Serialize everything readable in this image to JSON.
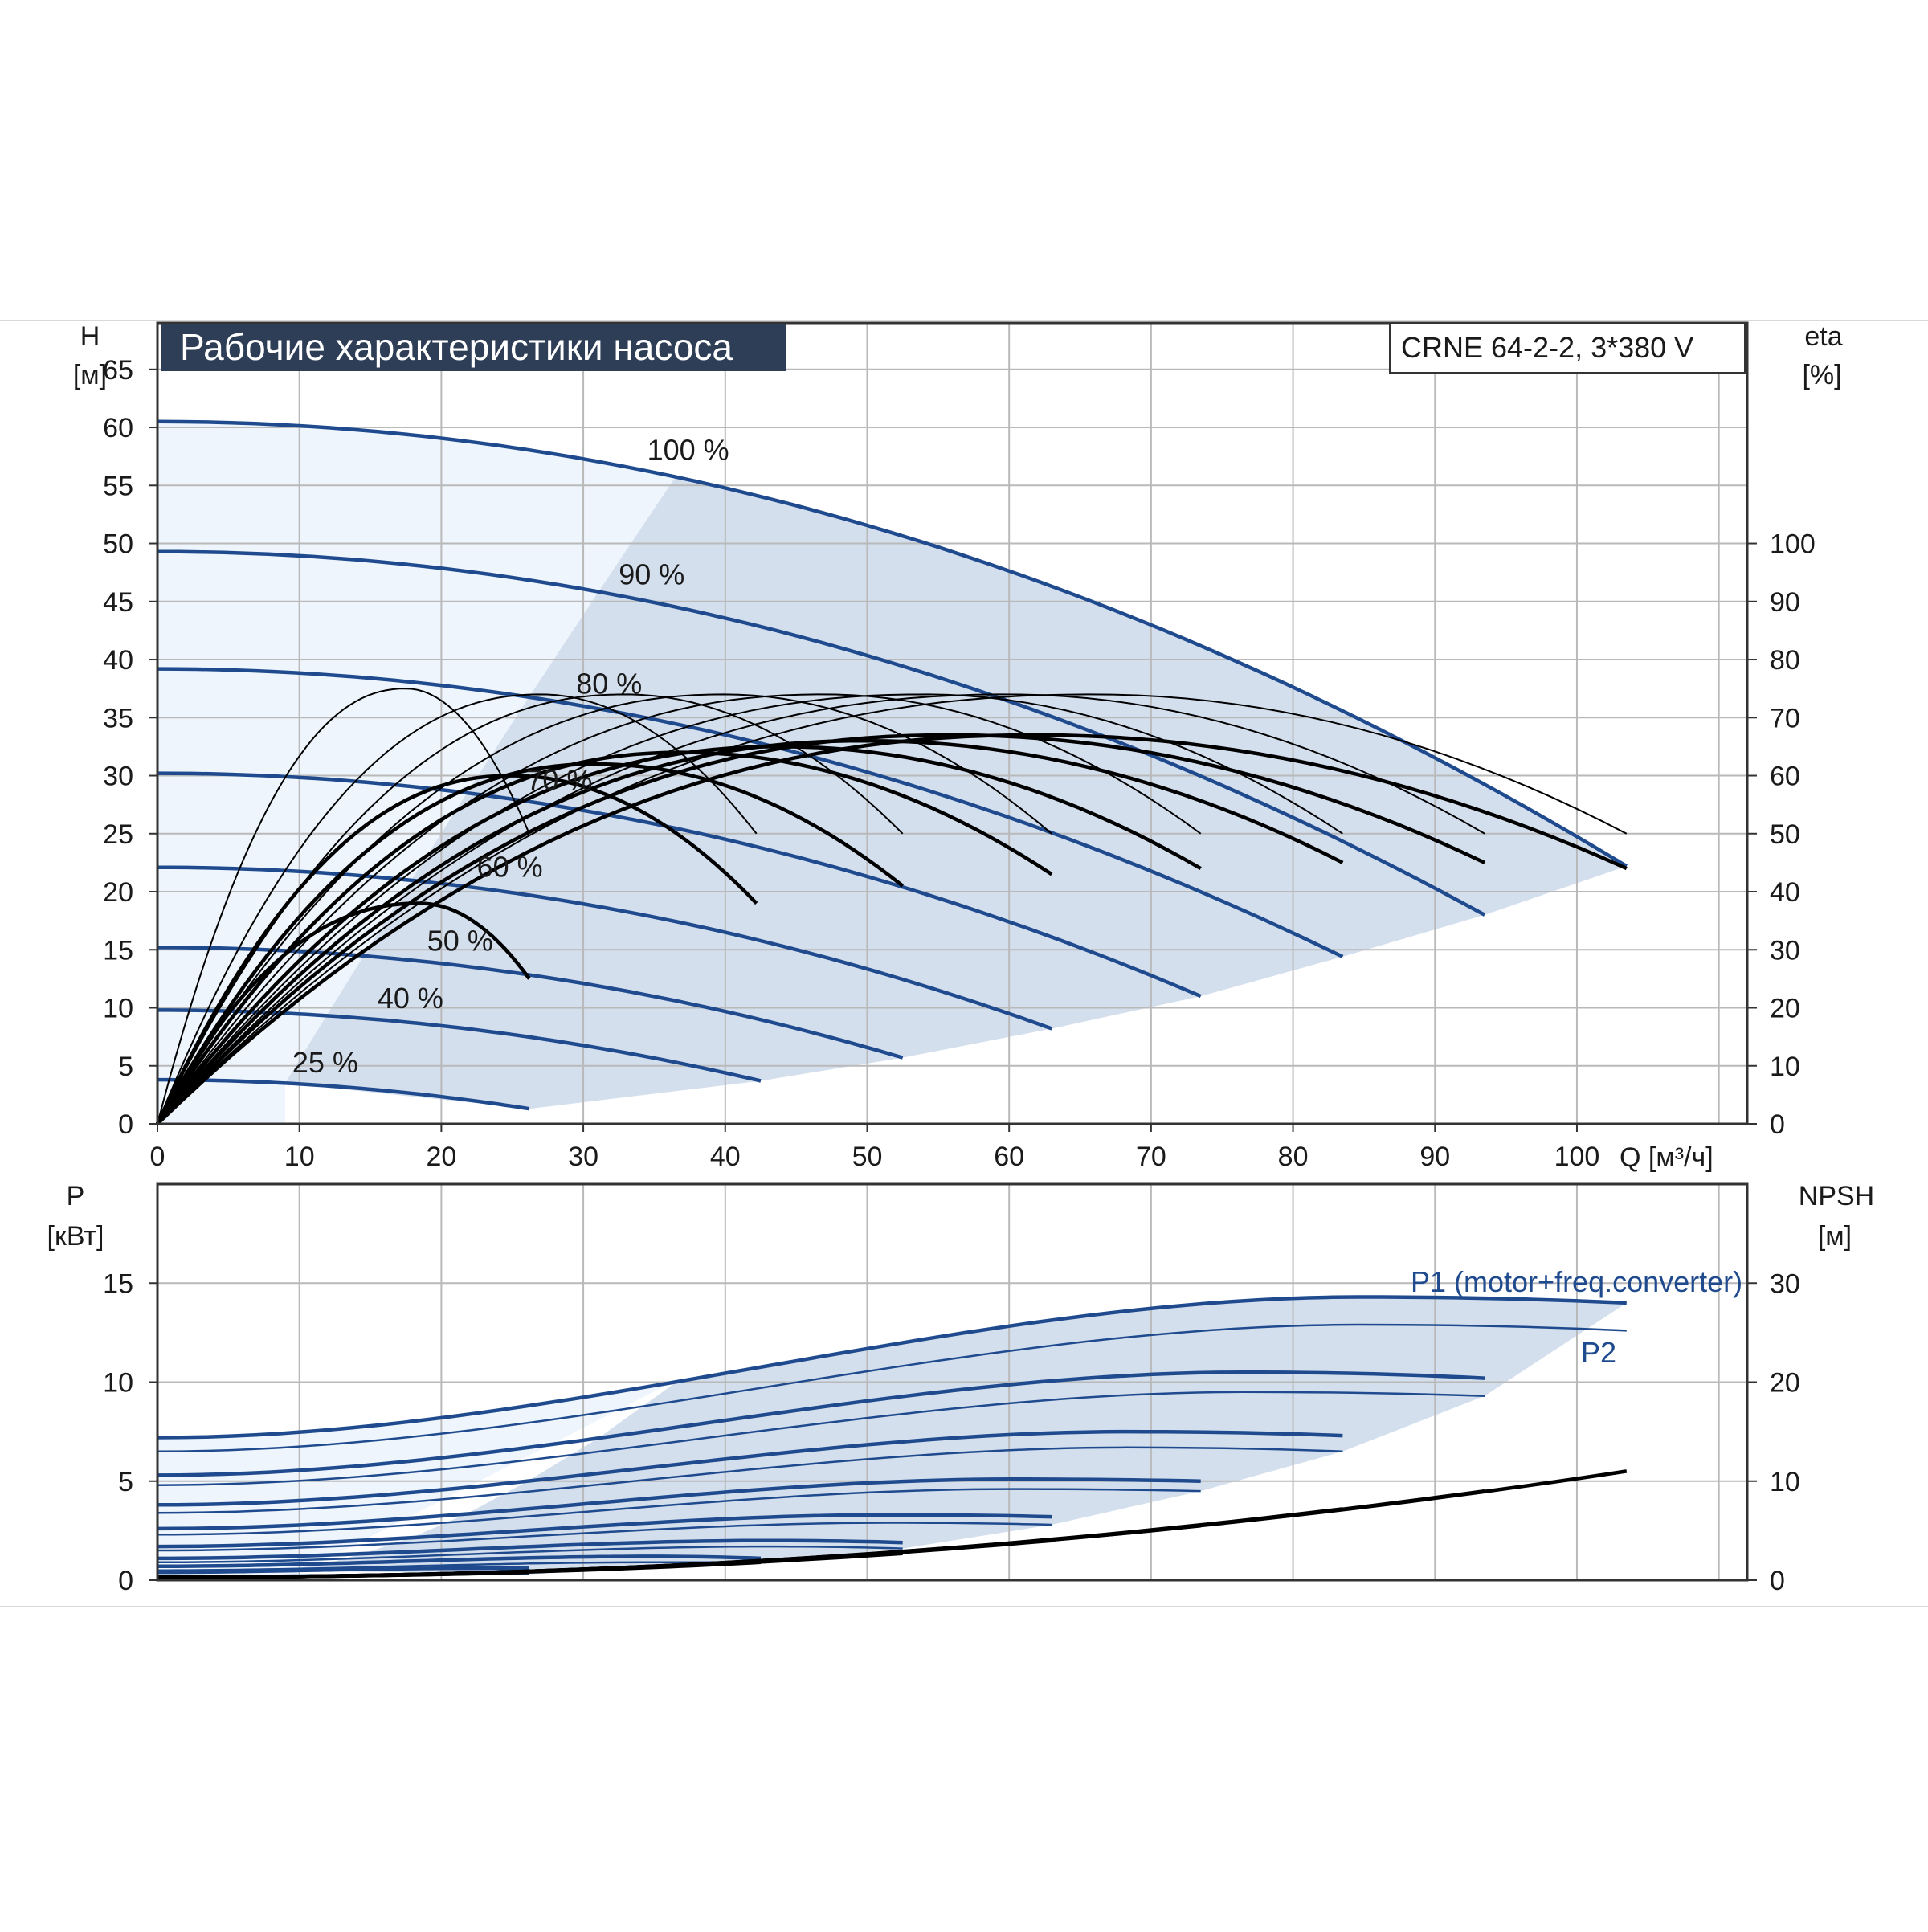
{
  "chart_data": [
    {
      "type": "line",
      "title": "Рабочие характеристики насоса",
      "model_label": "CRNE 64-2-2, 3*380 V",
      "ylabel": [
        "H",
        "[м]"
      ],
      "y2label": [
        "eta",
        "[%]"
      ],
      "xlabel": "Q [м³/ч]",
      "xlim": [
        0,
        112
      ],
      "ylim": [
        0,
        69
      ],
      "y2_scale": [
        0,
        50
      ],
      "x_ticks": [
        0,
        10,
        20,
        30,
        40,
        50,
        60,
        70,
        80,
        90,
        100
      ],
      "y_ticks": [
        0,
        5,
        10,
        15,
        20,
        25,
        30,
        35,
        40,
        45,
        50,
        55,
        60,
        65
      ],
      "y2_ticks": [
        0,
        10,
        20,
        30,
        40,
        50,
        60,
        70,
        80,
        90,
        100
      ],
      "grid": true,
      "colors": {
        "head_curve": "#1f4b8e",
        "eta_curve": "#000000",
        "envelope": "#cfdcec",
        "low_zone": "#eef5fc",
        "title_bg": "#2e3e57"
      },
      "head_curves": [
        {
          "speed_label": "100 %",
          "h0": 60.5,
          "qmax": 103.5,
          "hend": 22.2
        },
        {
          "speed_label": "90 %",
          "h0": 49.3,
          "qmax": 93.5,
          "hend": 18.0
        },
        {
          "speed_label": "80 %",
          "h0": 39.2,
          "qmax": 83.5,
          "hend": 14.4
        },
        {
          "speed_label": "70 %",
          "h0": 30.2,
          "qmax": 73.5,
          "hend": 11.0
        },
        {
          "speed_label": "60 %",
          "h0": 22.1,
          "qmax": 63.0,
          "hend": 8.2
        },
        {
          "speed_label": "50 %",
          "h0": 15.2,
          "qmax": 52.5,
          "hend": 5.7
        },
        {
          "speed_label": "40 %",
          "h0": 9.8,
          "qmax": 42.5,
          "hend": 3.7
        },
        {
          "speed_label": "25 %",
          "h0": 3.8,
          "qmax": 26.2,
          "hend": 1.3
        }
      ],
      "eta_curves": [
        {
          "qmax": 103.5,
          "peak_q": 62,
          "peak_eta": 67,
          "end_eta": 44,
          "line": "thick"
        },
        {
          "qmax": 103.5,
          "peak_q": 66,
          "peak_eta": 74,
          "end_eta": 50,
          "line": "thin"
        },
        {
          "qmax": 93.5,
          "peak_q": 56,
          "peak_eta": 67,
          "end_eta": 45,
          "line": "thick"
        },
        {
          "qmax": 93.5,
          "peak_q": 60,
          "peak_eta": 74,
          "end_eta": 50,
          "line": "thin"
        },
        {
          "qmax": 83.5,
          "peak_q": 50,
          "peak_eta": 66,
          "end_eta": 45,
          "line": "thick"
        },
        {
          "qmax": 83.5,
          "peak_q": 54,
          "peak_eta": 74,
          "end_eta": 50,
          "line": "thin"
        },
        {
          "qmax": 73.5,
          "peak_q": 44,
          "peak_eta": 65,
          "end_eta": 44,
          "line": "thick"
        },
        {
          "qmax": 73.5,
          "peak_q": 47,
          "peak_eta": 74,
          "end_eta": 50,
          "line": "thin"
        },
        {
          "qmax": 63.0,
          "peak_q": 37,
          "peak_eta": 64,
          "end_eta": 43,
          "line": "thick"
        },
        {
          "qmax": 63.0,
          "peak_q": 40,
          "peak_eta": 74,
          "end_eta": 50,
          "line": "thin"
        },
        {
          "qmax": 52.5,
          "peak_q": 31,
          "peak_eta": 62,
          "end_eta": 41,
          "line": "thick"
        },
        {
          "qmax": 52.5,
          "peak_q": 33,
          "peak_eta": 74,
          "end_eta": 50,
          "line": "thin"
        },
        {
          "qmax": 42.2,
          "peak_q": 25,
          "peak_eta": 60,
          "end_eta": 38,
          "line": "thick"
        },
        {
          "qmax": 42.2,
          "peak_q": 27,
          "peak_eta": 74,
          "end_eta": 50,
          "line": "thin"
        },
        {
          "qmax": 26.2,
          "peak_q": 18.5,
          "peak_eta": 38,
          "end_eta": 25,
          "line": "thick"
        },
        {
          "qmax": 26.2,
          "peak_q": 17.5,
          "peak_eta": 75,
          "end_eta": 50,
          "line": "thin"
        }
      ]
    },
    {
      "type": "line",
      "ylabel": [
        "P",
        "[кВт]"
      ],
      "y2label": [
        "NPSH",
        "[м]"
      ],
      "xlim": [
        0,
        112
      ],
      "ylim": [
        0,
        20
      ],
      "y2_scale": [
        0,
        2
      ],
      "y_ticks": [
        0,
        5,
        10,
        15
      ],
      "y2_ticks": [
        0,
        10,
        20,
        30
      ],
      "grid": true,
      "series_labels": [
        "P1 (motor+freq.converter)",
        "P2"
      ],
      "power_curves": [
        {
          "speed_label": "100 %",
          "qmax": 103.5,
          "p1": [
            7.2,
            14.3,
            14.0
          ],
          "p2": [
            6.5,
            12.9,
            12.6
          ]
        },
        {
          "speed_label": "90 %",
          "qmax": 93.5,
          "p1": [
            5.3,
            10.5,
            10.2
          ],
          "p2": [
            4.8,
            9.5,
            9.3
          ]
        },
        {
          "speed_label": "80 %",
          "qmax": 83.5,
          "p1": [
            3.8,
            7.5,
            7.3
          ],
          "p2": [
            3.4,
            6.7,
            6.5
          ]
        },
        {
          "speed_label": "70 %",
          "qmax": 73.5,
          "p1": [
            2.6,
            5.1,
            5.0
          ],
          "p2": [
            2.3,
            4.6,
            4.5
          ]
        },
        {
          "speed_label": "60 %",
          "qmax": 63.0,
          "p1": [
            1.7,
            3.3,
            3.2
          ],
          "p2": [
            1.5,
            2.9,
            2.8
          ]
        },
        {
          "speed_label": "50 %",
          "qmax": 52.5,
          "p1": [
            1.1,
            2.0,
            1.9
          ],
          "p2": [
            0.9,
            1.7,
            1.6
          ]
        },
        {
          "speed_label": "40 %",
          "qmax": 42.5,
          "p1": [
            0.7,
            1.2,
            1.1
          ],
          "p2": [
            0.5,
            0.9,
            0.9
          ]
        },
        {
          "speed_label": "25 %",
          "qmax": 26.2,
          "p1": [
            0.4,
            0.6,
            0.6
          ],
          "p2": [
            0.2,
            0.3,
            0.3
          ]
        }
      ],
      "npsh_curves": [
        {
          "qmax": 103.5,
          "end": 11.0
        },
        {
          "qmax": 93.5,
          "end": 9.0
        },
        {
          "qmax": 83.5,
          "end": 7.2
        },
        {
          "qmax": 73.5,
          "end": 5.5
        },
        {
          "qmax": 63.0,
          "end": 4.0
        },
        {
          "qmax": 52.5,
          "end": 2.7
        },
        {
          "qmax": 42.5,
          "end": 1.8
        },
        {
          "qmax": 26.2,
          "end": 0.8
        }
      ]
    }
  ]
}
